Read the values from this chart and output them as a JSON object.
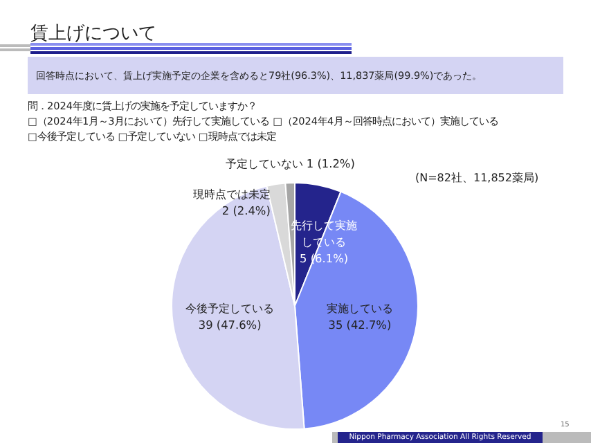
{
  "chart_data": {
    "type": "pie",
    "title": "賃上げについて",
    "subtitle": "回答時点において、賃上げ実施予定の企業を含めると79社(96.3%)、11,837薬局(99.9%)であった。",
    "categories": [
      "先行して実施している",
      "実施している",
      "今後予定している",
      "現時点では未定",
      "予定していない"
    ],
    "values": [
      5,
      35,
      39,
      2,
      1
    ],
    "value_labels": [
      "5 (6.1%)",
      "35 (42.7%)",
      "39 (47.6%)",
      "2 (2.4%)",
      "1 (1.2%)"
    ],
    "colors": [
      "#24248c",
      "#7788f5",
      "#d4d4f3",
      "#d9d9d9",
      "#a6a6a6"
    ],
    "annotations": [
      "問．2024年度に賃上げの実施を予定していますか？",
      "□（2024年1月～3月において）先行して実施している □（2024年4月～回答時点において）実施している",
      "□今後予定している □予定していない □現時点では未定",
      "(N=82社、11,852薬局)",
      "Nippon Pharmacy Association All Rights Reserved",
      "15"
    ],
    "legend": false
  }
}
